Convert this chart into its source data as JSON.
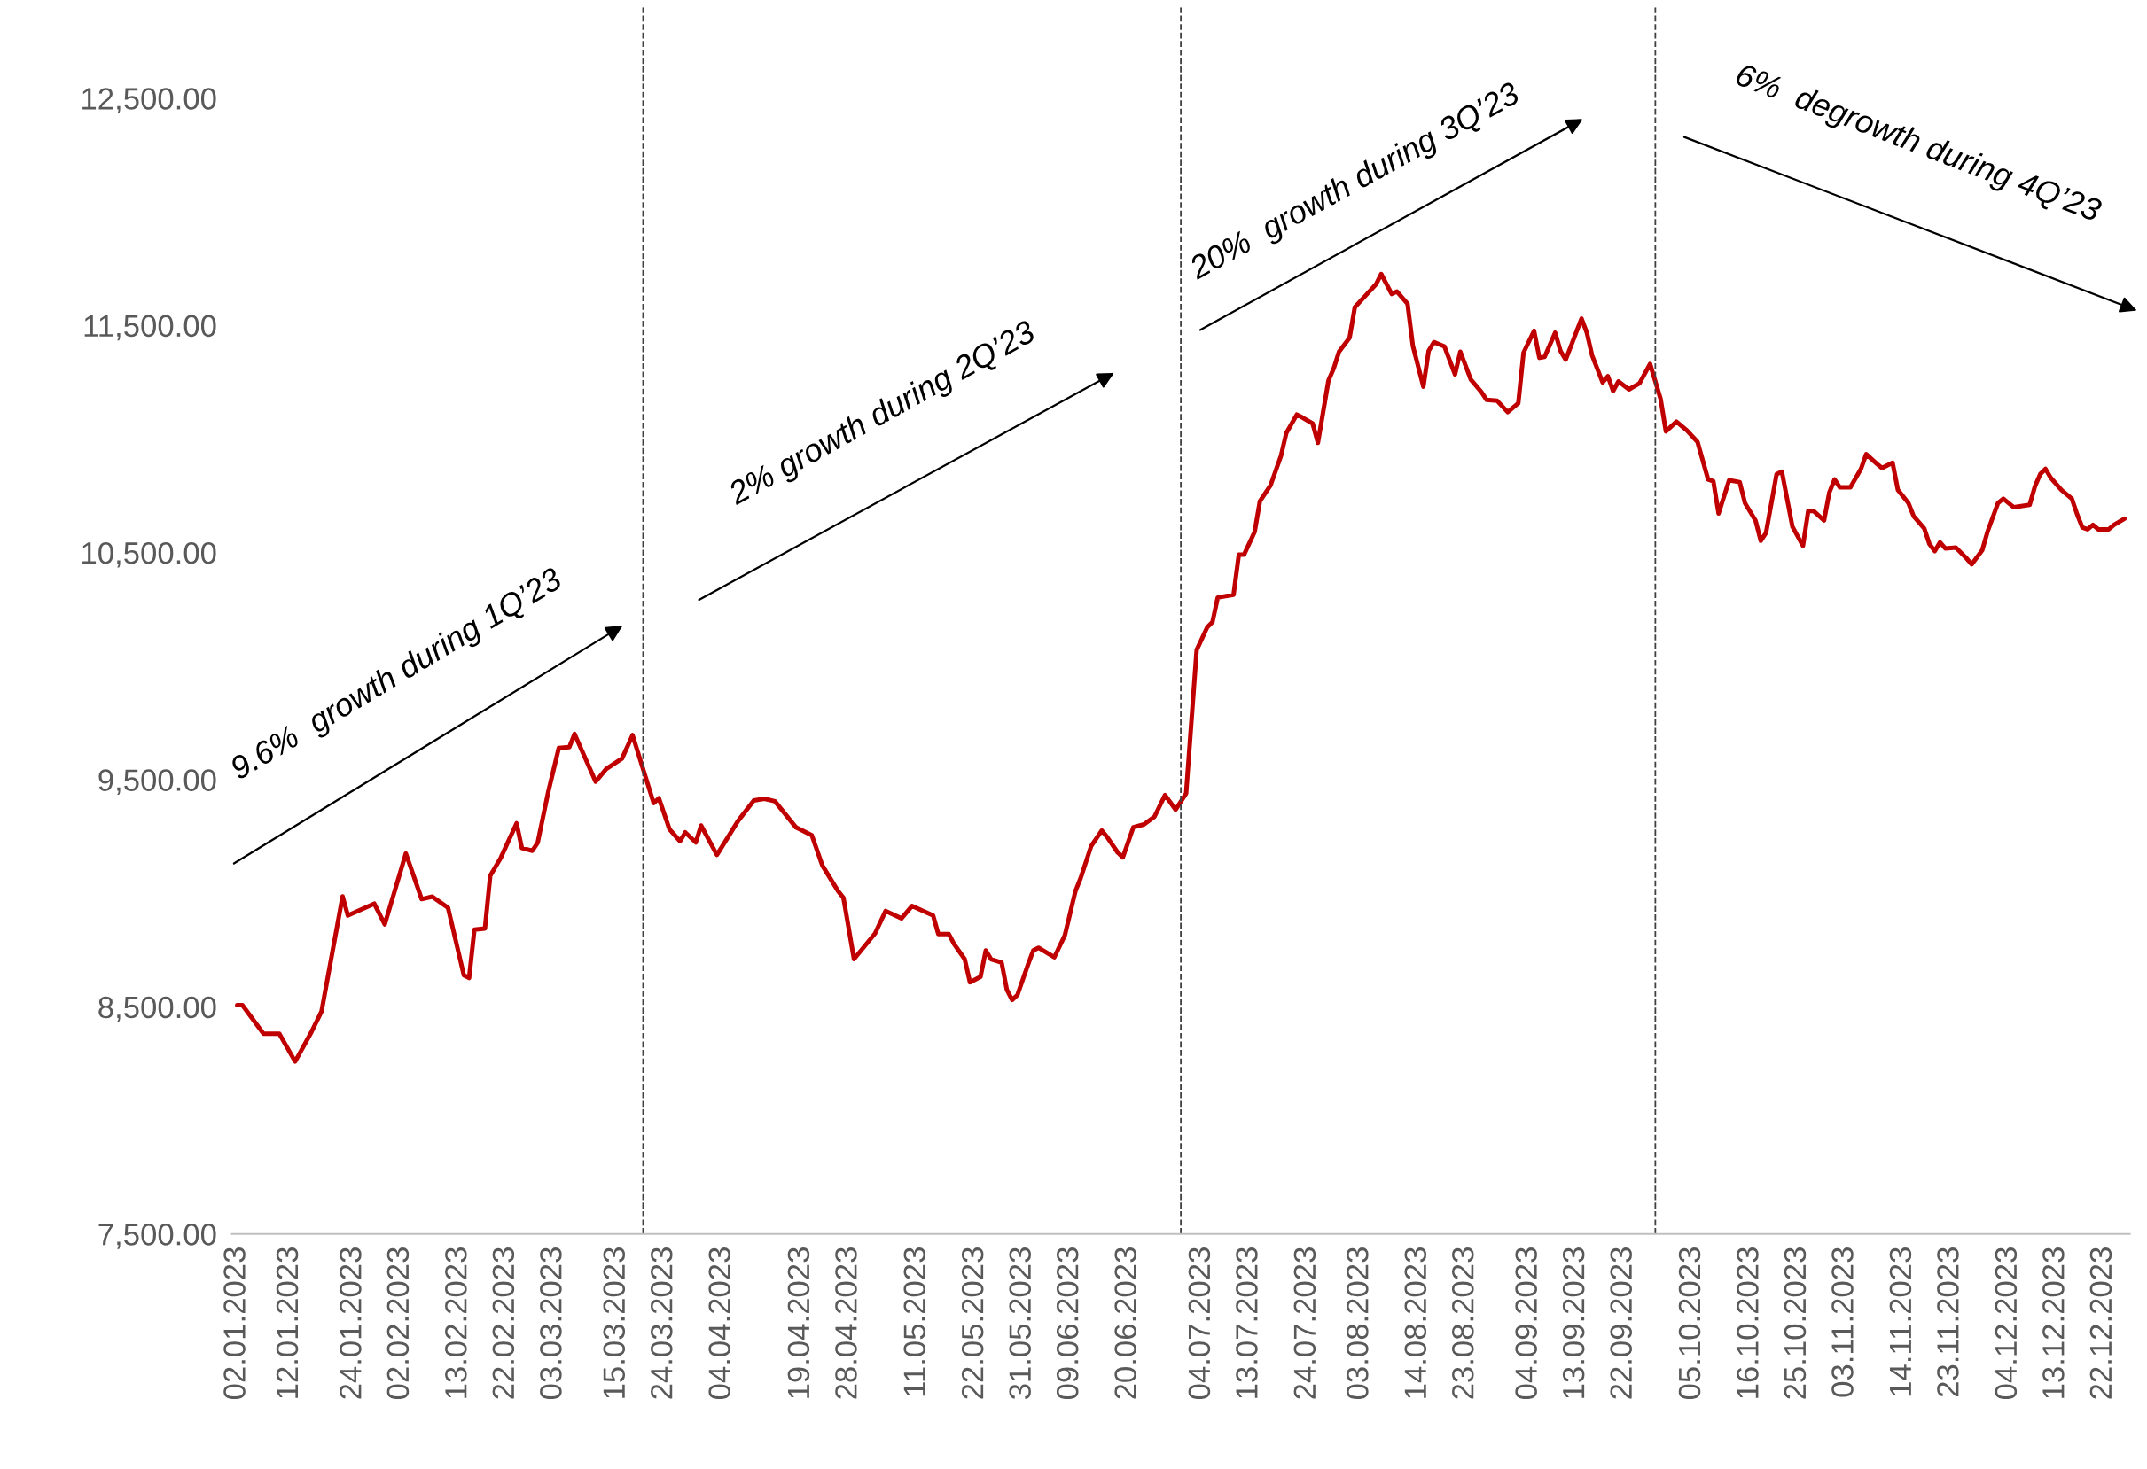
{
  "chart_data": {
    "type": "line",
    "x": [
      "2023-01-02",
      "2023-01-03",
      "2023-01-07",
      "2023-01-10",
      "2023-01-13",
      "2023-01-16",
      "2023-01-18",
      "2023-01-22",
      "2023-01-23",
      "2023-01-28",
      "2023-01-30",
      "2023-02-03",
      "2023-02-06",
      "2023-02-08",
      "2023-02-11",
      "2023-02-14",
      "2023-02-15",
      "2023-02-16",
      "2023-02-18",
      "2023-02-19",
      "2023-02-21",
      "2023-02-24",
      "2023-02-25",
      "2023-02-27",
      "2023-02-28",
      "2023-03-02",
      "2023-03-04",
      "2023-03-06",
      "2023-03-07",
      "2023-03-11",
      "2023-03-13",
      "2023-03-16",
      "2023-03-18",
      "2023-03-22",
      "2023-03-23",
      "2023-03-25",
      "2023-03-27",
      "2023-03-28",
      "2023-03-30",
      "2023-03-31",
      "2023-04-03",
      "2023-04-07",
      "2023-04-10",
      "2023-04-12",
      "2023-04-14",
      "2023-04-18",
      "2023-04-21",
      "2023-04-23",
      "2023-04-26",
      "2023-04-27",
      "2023-04-29",
      "2023-05-03",
      "2023-05-05",
      "2023-05-08",
      "2023-05-10",
      "2023-05-14",
      "2023-05-15",
      "2023-05-17",
      "2023-05-18",
      "2023-05-20",
      "2023-05-21",
      "2023-05-23",
      "2023-05-24",
      "2023-05-25",
      "2023-05-27",
      "2023-05-28",
      "2023-05-29",
      "2023-05-30",
      "2023-06-01",
      "2023-06-02",
      "2023-06-03",
      "2023-06-06",
      "2023-06-08",
      "2023-06-10",
      "2023-06-11",
      "2023-06-13",
      "2023-06-15",
      "2023-06-16",
      "2023-06-18",
      "2023-06-19",
      "2023-06-21",
      "2023-06-23",
      "2023-06-25",
      "2023-06-27",
      "2023-06-29",
      "2023-07-01",
      "2023-07-03",
      "2023-07-05",
      "2023-07-06",
      "2023-07-07",
      "2023-07-10",
      "2023-07-11",
      "2023-07-12",
      "2023-07-14",
      "2023-07-15",
      "2023-07-17",
      "2023-07-19",
      "2023-07-20",
      "2023-07-22",
      "2023-07-23",
      "2023-07-25",
      "2023-07-26",
      "2023-07-28",
      "2023-07-29",
      "2023-07-30",
      "2023-08-01",
      "2023-08-02",
      "2023-08-04",
      "2023-08-06",
      "2023-08-07",
      "2023-08-09",
      "2023-08-10",
      "2023-08-12",
      "2023-08-13",
      "2023-08-15",
      "2023-08-16",
      "2023-08-17",
      "2023-08-19",
      "2023-08-21",
      "2023-08-22",
      "2023-08-24",
      "2023-08-26",
      "2023-08-27",
      "2023-08-29",
      "2023-08-31",
      "2023-09-02",
      "2023-09-03",
      "2023-09-05",
      "2023-09-06",
      "2023-09-07",
      "2023-09-09",
      "2023-09-10",
      "2023-09-11",
      "2023-09-14",
      "2023-09-15",
      "2023-09-16",
      "2023-09-18",
      "2023-09-19",
      "2023-09-20",
      "2023-09-21",
      "2023-09-23",
      "2023-09-25",
      "2023-09-27",
      "2023-09-29",
      "2023-09-30",
      "2023-10-02",
      "2023-10-04",
      "2023-10-06",
      "2023-10-08",
      "2023-10-09",
      "2023-10-10",
      "2023-10-12",
      "2023-10-14",
      "2023-10-15",
      "2023-10-17",
      "2023-10-18",
      "2023-10-19",
      "2023-10-21",
      "2023-10-22",
      "2023-10-24",
      "2023-10-26",
      "2023-10-27",
      "2023-10-28",
      "2023-10-30",
      "2023-10-31",
      "2023-11-01",
      "2023-11-02",
      "2023-11-04",
      "2023-11-06",
      "2023-11-07",
      "2023-11-09",
      "2023-11-10",
      "2023-11-12",
      "2023-11-13",
      "2023-11-15",
      "2023-11-16",
      "2023-11-18",
      "2023-11-19",
      "2023-11-20",
      "2023-11-21",
      "2023-11-22",
      "2023-11-24",
      "2023-11-26",
      "2023-11-27",
      "2023-11-29",
      "2023-11-30",
      "2023-12-02",
      "2023-12-03",
      "2023-12-05",
      "2023-12-08",
      "2023-12-09",
      "2023-12-10",
      "2023-12-11",
      "2023-12-12",
      "2023-12-14",
      "2023-12-16",
      "2023-12-17",
      "2023-12-18",
      "2023-12-19",
      "2023-12-20",
      "2023-12-21",
      "2023-12-23",
      "2023-12-24",
      "2023-12-26"
    ],
    "series": [
      {
        "color": "#c00000",
        "values": [
          8507,
          8507,
          8381,
          8381,
          8259,
          8385,
          8479,
          8986,
          8902,
          8954,
          8863,
          9175,
          8974,
          8985,
          8936,
          8639,
          8627,
          8840,
          8845,
          9077,
          9156,
          9308,
          9199,
          9187,
          9222,
          9445,
          9639,
          9643,
          9701,
          9491,
          9547,
          9593,
          9696,
          9397,
          9418,
          9282,
          9229,
          9268,
          9224,
          9298,
          9169,
          9318,
          9408,
          9416,
          9405,
          9290,
          9255,
          9122,
          9009,
          8980,
          8710,
          8823,
          8922,
          8889,
          8944,
          8902,
          8820,
          8820,
          8776,
          8710,
          8608,
          8632,
          8748,
          8710,
          8695,
          8575,
          8530,
          8552,
          8685,
          8748,
          8760,
          8718,
          8815,
          9009,
          9067,
          9208,
          9276,
          9248,
          9180,
          9158,
          9291,
          9303,
          9337,
          9432,
          9368,
          9439,
          10071,
          10171,
          10194,
          10302,
          10314,
          10491,
          10491,
          10591,
          10726,
          10795,
          10926,
          11026,
          11107,
          11095,
          11068,
          10983,
          11257,
          11311,
          11384,
          11445,
          11580,
          11630,
          11680,
          11726,
          11638,
          11649,
          11595,
          11411,
          11230,
          11388,
          11426,
          11407,
          11284,
          11384,
          11261,
          11207,
          11172,
          11168,
          11118,
          11157,
          11380,
          11476,
          11357,
          11361,
          11468,
          11388,
          11349,
          11530,
          11468,
          11368,
          11249,
          11276,
          11211,
          11253,
          11218,
          11245,
          11330,
          11176,
          11033,
          11076,
          11037,
          10987,
          10822,
          10814,
          10672,
          10818,
          10810,
          10718,
          10641,
          10552,
          10587,
          10845,
          10856,
          10614,
          10529,
          10683,
          10683,
          10641,
          10764,
          10822,
          10787,
          10787,
          10868,
          10933,
          10891,
          10872,
          10895,
          10776,
          10718,
          10660,
          10606,
          10537,
          10506,
          10545,
          10518,
          10522,
          10475,
          10448,
          10510,
          10591,
          10718,
          10737,
          10699,
          10710,
          10791,
          10845,
          10868,
          10829,
          10776,
          10737,
          10668,
          10610,
          10602,
          10622,
          10602,
          10602,
          10622,
          10649
        ]
      }
    ],
    "xlim": [
      "2023-01-01",
      "2023-12-27"
    ],
    "xticks": [
      {
        "value": "2023-01-02",
        "label": "02.01.2023"
      },
      {
        "value": "2023-01-12",
        "label": "12.01.2023"
      },
      {
        "value": "2023-01-24",
        "label": "24.01.2023"
      },
      {
        "value": "2023-02-02",
        "label": "02.02.2023"
      },
      {
        "value": "2023-02-13",
        "label": "13.02.2023"
      },
      {
        "value": "2023-02-22",
        "label": "22.02.2023"
      },
      {
        "value": "2023-03-03",
        "label": "03.03.2023"
      },
      {
        "value": "2023-03-15",
        "label": "15.03.2023"
      },
      {
        "value": "2023-03-24",
        "label": "24.03.2023"
      },
      {
        "value": "2023-04-04",
        "label": "04.04.2023"
      },
      {
        "value": "2023-04-19",
        "label": "19.04.2023"
      },
      {
        "value": "2023-04-28",
        "label": "28.04.2023"
      },
      {
        "value": "2023-05-11",
        "label": "11.05.2023"
      },
      {
        "value": "2023-05-22",
        "label": "22.05.2023"
      },
      {
        "value": "2023-05-31",
        "label": "31.05.2023"
      },
      {
        "value": "2023-06-09",
        "label": "09.06.2023"
      },
      {
        "value": "2023-06-20",
        "label": "20.06.2023"
      },
      {
        "value": "2023-07-04",
        "label": "04.07.2023"
      },
      {
        "value": "2023-07-13",
        "label": "13.07.2023"
      },
      {
        "value": "2023-07-24",
        "label": "24.07.2023"
      },
      {
        "value": "2023-08-03",
        "label": "03.08.2023"
      },
      {
        "value": "2023-08-14",
        "label": "14.08.2023"
      },
      {
        "value": "2023-08-23",
        "label": "23.08.2023"
      },
      {
        "value": "2023-09-04",
        "label": "04.09.2023"
      },
      {
        "value": "2023-09-13",
        "label": "13.09.2023"
      },
      {
        "value": "2023-09-22",
        "label": "22.09.2023"
      },
      {
        "value": "2023-10-05",
        "label": "05.10.2023"
      },
      {
        "value": "2023-10-16",
        "label": "16.10.2023"
      },
      {
        "value": "2023-10-25",
        "label": "25.10.2023"
      },
      {
        "value": "2023-11-03",
        "label": "03.11.2023"
      },
      {
        "value": "2023-11-14",
        "label": "14.11.2023"
      },
      {
        "value": "2023-11-23",
        "label": "23.11.2023"
      },
      {
        "value": "2023-12-04",
        "label": "04.12.2023"
      },
      {
        "value": "2023-12-13",
        "label": "13.12.2023"
      },
      {
        "value": "2023-12-22",
        "label": "22.12.2023"
      }
    ],
    "ylim": [
      7500,
      12900
    ],
    "yticks": [
      {
        "value": 7500,
        "label": "7,500.00"
      },
      {
        "value": 8500,
        "label": "8,500.00"
      },
      {
        "value": 9500,
        "label": "9,500.00"
      },
      {
        "value": 10500,
        "label": "10,500.00"
      },
      {
        "value": 11500,
        "label": "11,500.00"
      },
      {
        "value": 12500,
        "label": "12,500.00"
      }
    ],
    "ref_lines": [
      {
        "axis": "x",
        "value": "2023-03-20",
        "color": "#404040",
        "line_style": "dashed"
      },
      {
        "axis": "x",
        "value": "2023-06-30",
        "color": "#404040",
        "line_style": "dashed"
      },
      {
        "axis": "x",
        "value": "2023-09-28",
        "color": "#404040",
        "line_style": "dashed"
      }
    ],
    "annotations": [
      "9.6%  growth during 1Q’23",
      "2% growth during 2Q’23",
      "20%  growth during 3Q’23",
      "6%  degrowth during 4Q’23"
    ],
    "line_style": "solid",
    "marker": "none"
  }
}
